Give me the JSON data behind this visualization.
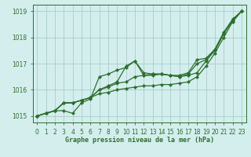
{
  "x": [
    0,
    1,
    2,
    3,
    4,
    5,
    6,
    7,
    8,
    9,
    10,
    11,
    12,
    13,
    14,
    15,
    16,
    17,
    18,
    19,
    20,
    21,
    22,
    23
  ],
  "line1": [
    1015.0,
    1015.1,
    1015.2,
    1015.5,
    1015.5,
    1015.6,
    1015.7,
    1015.85,
    1015.9,
    1016.0,
    1016.05,
    1016.1,
    1016.15,
    1016.15,
    1016.2,
    1016.2,
    1016.25,
    1016.3,
    1016.5,
    1016.9,
    1017.4,
    1018.0,
    1018.6,
    1019.0
  ],
  "line2": [
    1015.0,
    1015.1,
    1015.2,
    1015.5,
    1015.5,
    1015.6,
    1015.7,
    1016.0,
    1016.1,
    1016.25,
    1016.3,
    1016.5,
    1016.55,
    1016.55,
    1016.6,
    1016.55,
    1016.5,
    1016.55,
    1016.65,
    1017.1,
    1017.5,
    1018.15,
    1018.65,
    1019.0
  ],
  "line3": [
    1015.0,
    1015.1,
    1015.2,
    1015.5,
    1015.5,
    1015.6,
    1015.7,
    1016.0,
    1016.15,
    1016.3,
    1016.9,
    1017.1,
    1016.55,
    1016.6,
    1016.6,
    1016.55,
    1016.5,
    1016.6,
    1017.0,
    1017.15,
    1017.5,
    1018.15,
    1018.65,
    1019.0
  ],
  "line4": [
    1015.0,
    1015.1,
    1015.2,
    1015.2,
    1015.1,
    1015.5,
    1015.65,
    1016.5,
    1016.6,
    1016.75,
    1016.85,
    1017.1,
    1016.65,
    1016.6,
    1016.6,
    1016.55,
    1016.55,
    1016.65,
    1017.15,
    1017.2,
    1017.55,
    1018.2,
    1018.7,
    1019.0
  ],
  "line_color": "#2d6e2d",
  "bg_color": "#d4eeee",
  "grid_color": "#a8cccc",
  "xlabel": "Graphe pression niveau de la mer (hPa)",
  "ylim": [
    1014.75,
    1019.25
  ],
  "xlim": [
    -0.5,
    23.5
  ],
  "yticks": [
    1015,
    1016,
    1017,
    1018,
    1019
  ],
  "xtick_labels": [
    "0",
    "1",
    "2",
    "3",
    "4",
    "5",
    "6",
    "7",
    "8",
    "9",
    "10",
    "11",
    "12",
    "13",
    "14",
    "15",
    "16",
    "17",
    "18",
    "19",
    "20",
    "21",
    "22",
    "23"
  ],
  "marker": "D",
  "markersize": 2.2,
  "linewidth": 0.9,
  "tick_fontsize": 5.5,
  "xlabel_fontsize": 6.0
}
